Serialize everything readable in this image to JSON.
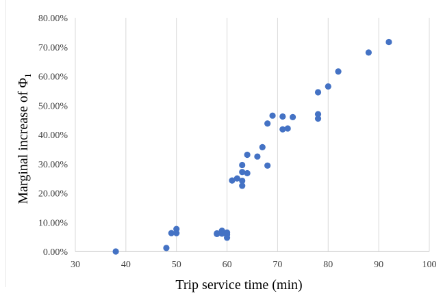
{
  "chart_data": {
    "type": "scatter",
    "xlabel": "Trip service time (min)",
    "ylabel": "Marginal increase of Φ",
    "ylabel_subscript": "1",
    "xlim": [
      30,
      100
    ],
    "ylim": [
      0,
      0.8
    ],
    "x_ticks": [
      "30",
      "40",
      "50",
      "60",
      "70",
      "80",
      "90",
      "100"
    ],
    "y_ticks": [
      "0.00%",
      "10.00%",
      "20.00%",
      "30.00%",
      "40.00%",
      "50.00%",
      "60.00%",
      "70.00%",
      "80.00%"
    ],
    "grid": "vertical",
    "marker_color": "#4472C4",
    "gridline_color": "#d9d9d9",
    "points": [
      {
        "x": 38,
        "y": 0.0
      },
      {
        "x": 48,
        "y": 0.012
      },
      {
        "x": 49,
        "y": 0.063
      },
      {
        "x": 50,
        "y": 0.077
      },
      {
        "x": 50,
        "y": 0.063
      },
      {
        "x": 58,
        "y": 0.06
      },
      {
        "x": 58,
        "y": 0.062
      },
      {
        "x": 59,
        "y": 0.071
      },
      {
        "x": 59,
        "y": 0.061
      },
      {
        "x": 60,
        "y": 0.065
      },
      {
        "x": 60,
        "y": 0.058
      },
      {
        "x": 60,
        "y": 0.047
      },
      {
        "x": 61,
        "y": 0.243
      },
      {
        "x": 62,
        "y": 0.25
      },
      {
        "x": 63,
        "y": 0.296
      },
      {
        "x": 63,
        "y": 0.272
      },
      {
        "x": 63,
        "y": 0.242
      },
      {
        "x": 63,
        "y": 0.225
      },
      {
        "x": 64,
        "y": 0.331
      },
      {
        "x": 64,
        "y": 0.268
      },
      {
        "x": 66,
        "y": 0.325
      },
      {
        "x": 67,
        "y": 0.357
      },
      {
        "x": 68,
        "y": 0.438
      },
      {
        "x": 68,
        "y": 0.294
      },
      {
        "x": 69,
        "y": 0.465
      },
      {
        "x": 71,
        "y": 0.462
      },
      {
        "x": 71,
        "y": 0.418
      },
      {
        "x": 72,
        "y": 0.421
      },
      {
        "x": 73,
        "y": 0.46
      },
      {
        "x": 78,
        "y": 0.545
      },
      {
        "x": 78,
        "y": 0.47
      },
      {
        "x": 78,
        "y": 0.455
      },
      {
        "x": 80,
        "y": 0.565
      },
      {
        "x": 82,
        "y": 0.616
      },
      {
        "x": 88,
        "y": 0.681
      },
      {
        "x": 92,
        "y": 0.717
      }
    ]
  }
}
